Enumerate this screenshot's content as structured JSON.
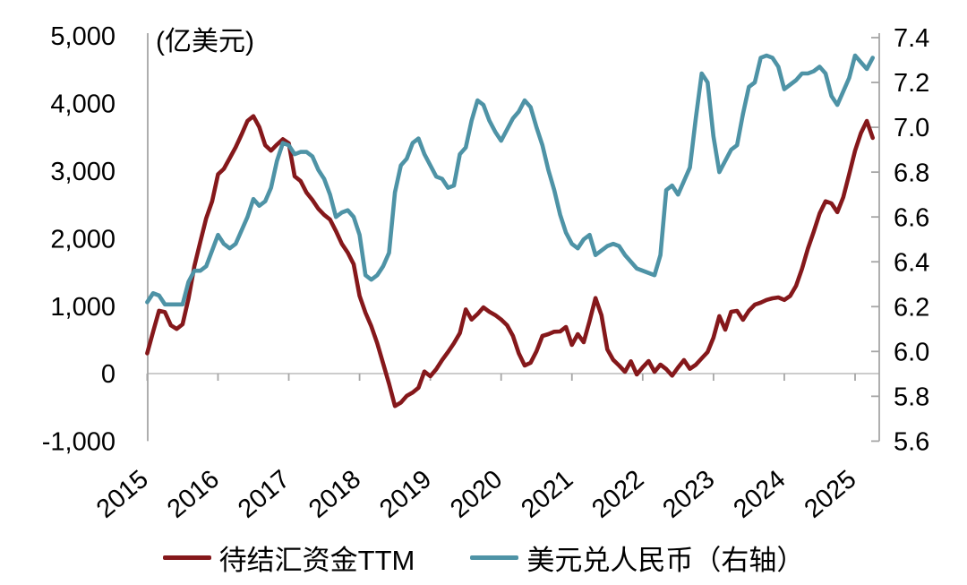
{
  "chart_data": {
    "type": "line",
    "unit_label": "(亿美元)",
    "frequency": "monthly",
    "x_start": "2015-01",
    "x_end": "2025-04",
    "x_axis": {
      "tick_labels": [
        "2015",
        "2016",
        "2017",
        "2018",
        "2019",
        "2020",
        "2021",
        "2022",
        "2023",
        "2024",
        "2025"
      ],
      "label_rotation_deg": -40
    },
    "left_axis": {
      "min": -1000,
      "max": 5000,
      "step": 1000,
      "ticks": [
        {
          "label": "5,000",
          "value": 5000
        },
        {
          "label": "4,000",
          "value": 4000
        },
        {
          "label": "3,000",
          "value": 3000
        },
        {
          "label": "2,000",
          "value": 2000
        },
        {
          "label": "1,000",
          "value": 1000
        },
        {
          "label": "0",
          "value": 0
        },
        {
          "label": "-1,000",
          "value": -1000
        }
      ]
    },
    "right_axis": {
      "min": 5.6,
      "max": 7.4,
      "step": 0.2,
      "ticks": [
        {
          "label": "7.4",
          "value": 7.4
        },
        {
          "label": "7.2",
          "value": 7.2
        },
        {
          "label": "7.0",
          "value": 7.0
        },
        {
          "label": "6.8",
          "value": 6.8
        },
        {
          "label": "6.6",
          "value": 6.6
        },
        {
          "label": "6.4",
          "value": 6.4
        },
        {
          "label": "6.2",
          "value": 6.2
        },
        {
          "label": "6.0",
          "value": 6.0
        },
        {
          "label": "5.8",
          "value": 5.8
        },
        {
          "label": "5.6",
          "value": 5.6
        }
      ]
    },
    "colors": {
      "axis": "#A6A6A6",
      "zero_line": "#C4C4C4"
    },
    "legend_position": "bottom-center",
    "grid": false,
    "series": [
      {
        "name": "待结汇资金TTM",
        "axis": "left",
        "color": "#85181B",
        "values": [
          300,
          620,
          930,
          910,
          715,
          660,
          730,
          1110,
          1590,
          1950,
          2300,
          2550,
          2950,
          3030,
          3190,
          3350,
          3540,
          3740,
          3810,
          3650,
          3380,
          3300,
          3390,
          3470,
          3410,
          2920,
          2850,
          2680,
          2570,
          2440,
          2350,
          2280,
          2110,
          1920,
          1790,
          1620,
          1150,
          900,
          700,
          450,
          150,
          -150,
          -480,
          -430,
          -330,
          -280,
          -210,
          30,
          -40,
          65,
          200,
          320,
          450,
          600,
          950,
          800,
          880,
          980,
          915,
          866,
          800,
          716,
          557,
          300,
          120,
          160,
          330,
          557,
          583,
          620,
          623,
          690,
          424,
          583,
          464,
          780,
          1118,
          866,
          358,
          203,
          119,
          27,
          182,
          -13,
          93,
          186,
          27,
          133,
          66,
          -30,
          90,
          200,
          70,
          130,
          225,
          320,
          530,
          850,
          650,
          915,
          928,
          796,
          930,
          1020,
          1050,
          1090,
          1114,
          1127,
          1090,
          1150,
          1300,
          1550,
          1850,
          2100,
          2370,
          2550,
          2520,
          2390,
          2610,
          2950,
          3300,
          3560,
          3740,
          3490
        ]
      },
      {
        "name": "美元兑人民币（右轴）",
        "axis": "right",
        "color": "#4E93A6",
        "values": [
          6.22,
          6.26,
          6.25,
          6.21,
          6.21,
          6.21,
          6.21,
          6.31,
          6.36,
          6.36,
          6.38,
          6.45,
          6.52,
          6.48,
          6.46,
          6.48,
          6.54,
          6.6,
          6.68,
          6.65,
          6.67,
          6.73,
          6.85,
          6.93,
          6.92,
          6.88,
          6.89,
          6.89,
          6.87,
          6.81,
          6.77,
          6.7,
          6.6,
          6.62,
          6.63,
          6.6,
          6.52,
          6.34,
          6.32,
          6.34,
          6.38,
          6.44,
          6.71,
          6.83,
          6.86,
          6.93,
          6.95,
          6.88,
          6.83,
          6.78,
          6.77,
          6.73,
          6.74,
          6.88,
          6.91,
          7.03,
          7.12,
          7.1,
          7.03,
          6.98,
          6.94,
          6.99,
          7.04,
          7.07,
          7.12,
          7.09,
          7.0,
          6.92,
          6.81,
          6.72,
          6.61,
          6.53,
          6.48,
          6.46,
          6.5,
          6.52,
          6.43,
          6.45,
          6.47,
          6.48,
          6.47,
          6.43,
          6.4,
          6.37,
          6.36,
          6.35,
          6.34,
          6.43,
          6.72,
          6.74,
          6.7,
          6.76,
          6.82,
          7.04,
          7.24,
          7.2,
          6.96,
          6.8,
          6.85,
          6.9,
          6.92,
          7.06,
          7.18,
          7.2,
          7.31,
          7.32,
          7.31,
          7.27,
          7.17,
          7.19,
          7.21,
          7.24,
          7.24,
          7.25,
          7.27,
          7.24,
          7.14,
          7.1,
          7.16,
          7.22,
          7.32,
          7.29,
          7.26,
          7.31
        ]
      }
    ]
  }
}
